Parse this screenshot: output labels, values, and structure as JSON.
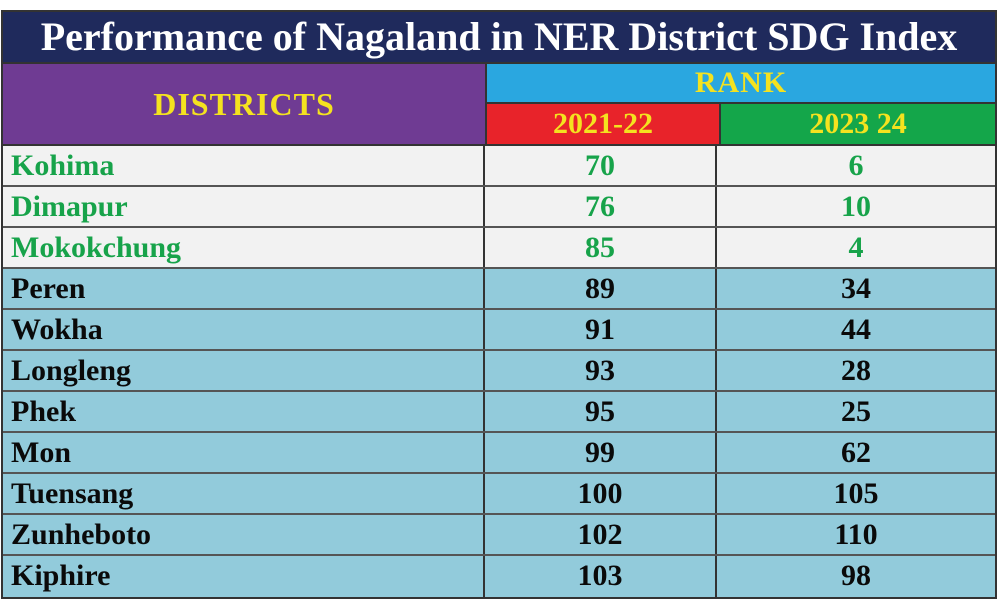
{
  "title": "Performance of Nagaland in NER District SDG Index",
  "header": {
    "districts_label": "DISTRICTS",
    "rank_label": "RANK",
    "year1_label": "2021-22",
    "year2_label": "2023 24"
  },
  "colors": {
    "title_bg": "#1f2a5c",
    "districts_bg": "#6f3b93",
    "rank_bg": "#2aa7e0",
    "year1_bg": "#e8232a",
    "year2_bg": "#14a64a",
    "header_text": "#f4e21f",
    "top_row_bg": "#f2f2f2",
    "top_row_text": "#17a34a",
    "other_row_bg": "#92cbdb"
  },
  "rows": [
    {
      "district": "Kohima",
      "rank_2021_22": "70",
      "rank_2023_24": "6",
      "highlight": true
    },
    {
      "district": "Dimapur",
      "rank_2021_22": "76",
      "rank_2023_24": "10",
      "highlight": true
    },
    {
      "district": "Mokokchung",
      "rank_2021_22": "85",
      "rank_2023_24": "4",
      "highlight": true
    },
    {
      "district": "Peren",
      "rank_2021_22": "89",
      "rank_2023_24": "34",
      "highlight": false
    },
    {
      "district": "Wokha",
      "rank_2021_22": "91",
      "rank_2023_24": "44",
      "highlight": false
    },
    {
      "district": "Longleng",
      "rank_2021_22": "93",
      "rank_2023_24": "28",
      "highlight": false
    },
    {
      "district": "Phek",
      "rank_2021_22": "95",
      "rank_2023_24": "25",
      "highlight": false
    },
    {
      "district": "Mon",
      "rank_2021_22": "99",
      "rank_2023_24": "62",
      "highlight": false
    },
    {
      "district": "Tuensang",
      "rank_2021_22": "100",
      "rank_2023_24": "105",
      "highlight": false
    },
    {
      "district": "Zunheboto",
      "rank_2021_22": "102",
      "rank_2023_24": "110",
      "highlight": false
    },
    {
      "district": "Kiphire",
      "rank_2021_22": "103",
      "rank_2023_24": "98",
      "highlight": false
    }
  ],
  "chart_data": {
    "type": "table",
    "title": "Performance of Nagaland in NER District SDG Index",
    "columns": [
      "DISTRICTS",
      "RANK 2021-22",
      "RANK 2023 24"
    ],
    "categories": [
      "Kohima",
      "Dimapur",
      "Mokokchung",
      "Peren",
      "Wokha",
      "Longleng",
      "Phek",
      "Mon",
      "Tuensang",
      "Zunheboto",
      "Kiphire"
    ],
    "series": [
      {
        "name": "2021-22",
        "values": [
          70,
          76,
          85,
          89,
          91,
          93,
          95,
          99,
          100,
          102,
          103
        ]
      },
      {
        "name": "2023 24",
        "values": [
          6,
          10,
          4,
          34,
          44,
          28,
          25,
          62,
          105,
          110,
          98
        ]
      }
    ]
  }
}
